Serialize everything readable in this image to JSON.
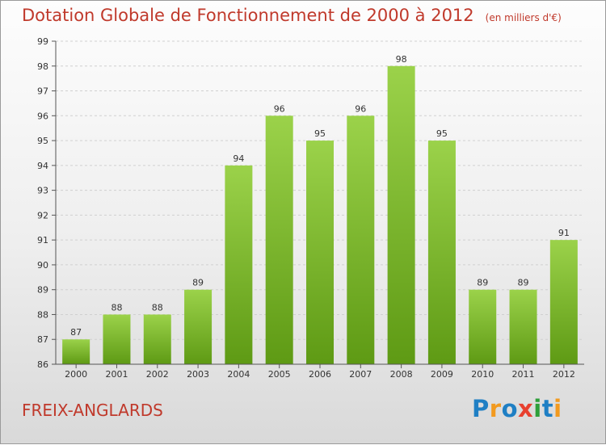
{
  "title": "Dotation Globale de Fonctionnement de 2000 à 2012",
  "subtitle": "(en milliers d'€)",
  "footer": {
    "commune": "FREIX-ANGLARDS",
    "logo_text": "Proxiti"
  },
  "colors": {
    "title": "#c0392b",
    "bar_top": "#9bd24a",
    "bar_bottom": "#5e9a14",
    "grid": "#d0d0d0"
  },
  "chart_data": {
    "type": "bar",
    "categories": [
      "2000",
      "2001",
      "2002",
      "2003",
      "2004",
      "2005",
      "2006",
      "2007",
      "2008",
      "2009",
      "2010",
      "2011",
      "2012"
    ],
    "values": [
      87,
      88,
      88,
      89,
      94,
      96,
      95,
      96,
      98,
      95,
      89,
      89,
      91
    ],
    "ylim": [
      86,
      99
    ],
    "yticks": [
      86,
      87,
      88,
      89,
      90,
      91,
      92,
      93,
      94,
      95,
      96,
      97,
      98,
      99
    ],
    "grid": true,
    "data_labels": true
  }
}
